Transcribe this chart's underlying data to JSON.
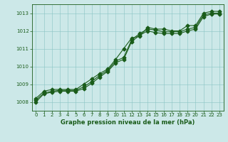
{
  "xlabel": "Graphe pression niveau de la mer (hPa)",
  "xlim": [
    -0.5,
    23.5
  ],
  "ylim": [
    1007.5,
    1013.5
  ],
  "yticks": [
    1008,
    1009,
    1010,
    1011,
    1012,
    1013
  ],
  "xticks": [
    0,
    1,
    2,
    3,
    4,
    5,
    6,
    7,
    8,
    9,
    10,
    11,
    12,
    13,
    14,
    15,
    16,
    17,
    18,
    19,
    20,
    21,
    22,
    23
  ],
  "background_color": "#cce8e8",
  "grid_color": "#88c4c4",
  "line_color": "#1a5c1a",
  "line1": [
    1008.2,
    1008.6,
    1008.7,
    1008.7,
    1008.7,
    1008.7,
    1009.0,
    1009.3,
    1009.6,
    1009.85,
    1010.4,
    1011.0,
    1011.6,
    1011.7,
    1012.2,
    1012.1,
    1012.1,
    1012.0,
    1012.0,
    1012.3,
    1012.3,
    1013.0,
    1013.1,
    1013.1
  ],
  "line2": [
    1008.1,
    1008.5,
    1008.6,
    1008.65,
    1008.65,
    1008.65,
    1008.85,
    1009.15,
    1009.5,
    1009.78,
    1010.3,
    1010.5,
    1011.5,
    1011.85,
    1012.1,
    1012.05,
    1011.95,
    1011.95,
    1011.95,
    1012.1,
    1012.2,
    1012.9,
    1013.0,
    1013.0
  ],
  "line3": [
    1008.0,
    1008.45,
    1008.55,
    1008.6,
    1008.6,
    1008.6,
    1008.75,
    1009.05,
    1009.4,
    1009.72,
    1010.2,
    1010.4,
    1011.4,
    1011.75,
    1012.0,
    1011.9,
    1011.85,
    1011.85,
    1011.85,
    1012.0,
    1012.1,
    1012.8,
    1012.95,
    1012.95
  ],
  "xlabel_fontsize": 6.0,
  "tick_fontsize": 5.0,
  "line_width": 0.8,
  "marker_size": 2.5
}
